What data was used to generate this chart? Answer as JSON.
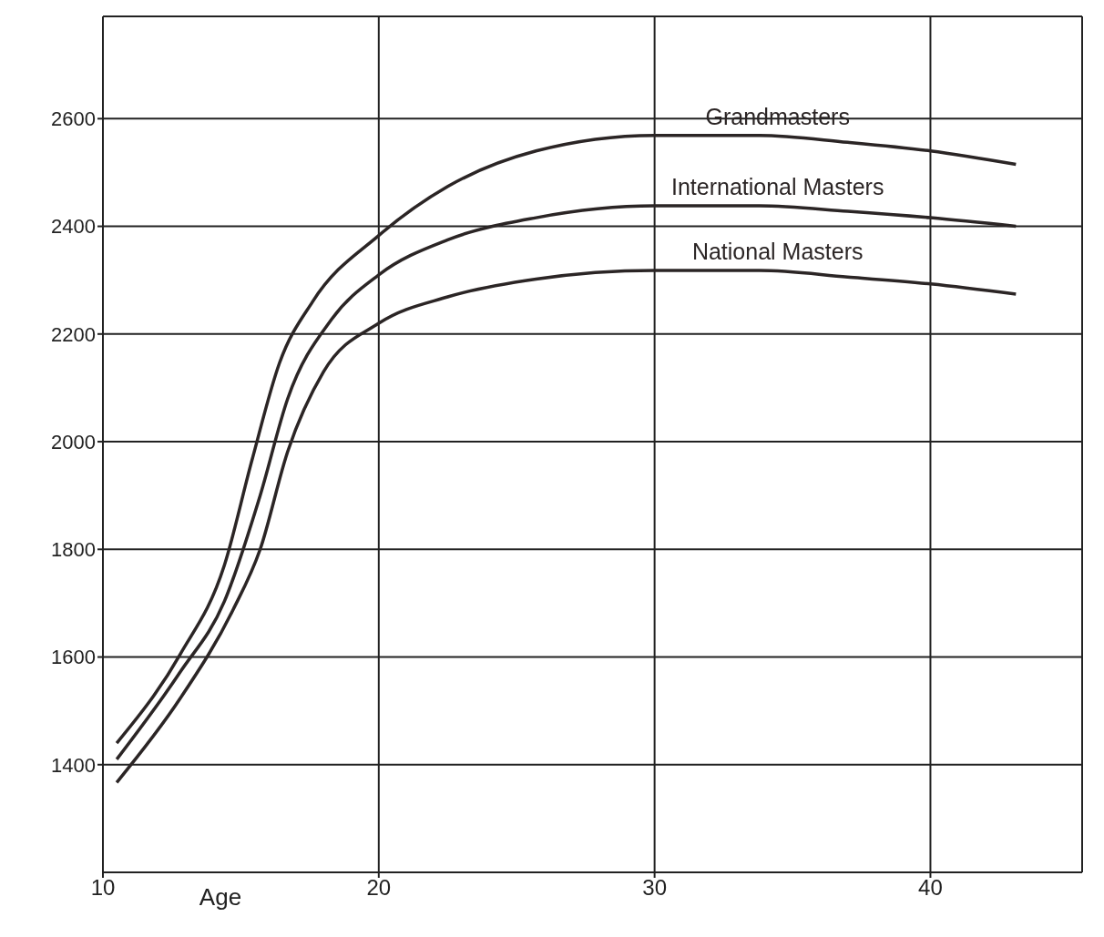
{
  "chart_data": {
    "type": "line",
    "xlabel": "Age",
    "xlim": [
      10,
      45.5
    ],
    "xticks": [
      10,
      20,
      30,
      40
    ],
    "ylim": [
      1200,
      2790
    ],
    "yticks": [
      1400,
      1600,
      1800,
      2000,
      2200,
      2400,
      2600
    ],
    "grid": true,
    "marker": "none",
    "line_style": "solid",
    "series": [
      {
        "name": "Grandmasters",
        "color": "#2b2525",
        "x": [
          10.5,
          12.8,
          14.4,
          15.4,
          16.4,
          17.6,
          20,
          22.5,
          25.7,
          30,
          33.8,
          37,
          40,
          43.1
        ],
        "values": [
          1440,
          1605,
          1770,
          1965,
          2146,
          2260,
          2383,
          2474,
          2540,
          2569,
          2569,
          2556,
          2540,
          2515
        ]
      },
      {
        "name": "International Masters",
        "color": "#2b2525",
        "x": [
          10.5,
          12.8,
          14.4,
          15.7,
          16.7,
          18.3,
          20,
          22.5,
          25.7,
          30,
          33.8,
          37,
          40,
          43.1
        ],
        "values": [
          1410,
          1572,
          1703,
          1900,
          2080,
          2228,
          2310,
          2375,
          2416,
          2438,
          2438,
          2428,
          2416,
          2400
        ]
      },
      {
        "name": "National Masters",
        "color": "#2b2525",
        "x": [
          10.5,
          12.8,
          14.7,
          15.7,
          16.7,
          18,
          20,
          22.5,
          25.7,
          30,
          33.8,
          37,
          40,
          43.1
        ],
        "values": [
          1367,
          1523,
          1686,
          1800,
          1982,
          2130,
          2220,
          2269,
          2302,
          2318,
          2318,
          2306,
          2293,
          2274
        ]
      }
    ]
  }
}
